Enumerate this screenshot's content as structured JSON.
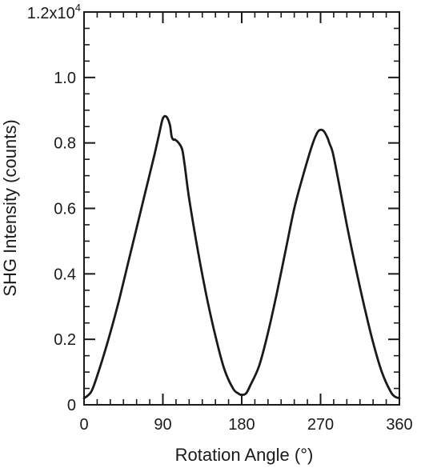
{
  "chart_data": {
    "type": "line",
    "title": "",
    "xlabel": "Rotation Angle (°)",
    "ylabel": "SHG Intensity (counts)",
    "xlim": [
      0,
      360
    ],
    "ylim": [
      0,
      12000
    ],
    "x_ticks": [
      0,
      90,
      180,
      270,
      360
    ],
    "x_tick_labels": [
      "0",
      "90",
      "180",
      "270",
      "360"
    ],
    "y_ticks": [
      0,
      2000,
      4000,
      6000,
      8000,
      10000,
      12000
    ],
    "y_tick_labels": [
      "0",
      "0.2",
      "0.4",
      "0.6",
      "0.8",
      "1.0",
      ""
    ],
    "y_top_label": {
      "base": "1.2x10",
      "exponent": "4"
    },
    "minor_ticks": {
      "x_step": 15,
      "y_step": 500
    },
    "grid": false,
    "legend": "none",
    "line_color": "#1a1a1a",
    "series": [
      {
        "x": [
          0,
          5,
          10,
          20,
          30,
          40,
          50,
          60,
          70,
          80,
          86,
          90,
          94,
          98,
          100,
          102,
          104,
          108,
          112,
          115,
          120,
          130,
          140,
          150,
          160,
          170,
          176,
          180,
          185,
          190,
          200,
          210,
          220,
          230,
          240,
          250,
          260,
          266,
          270,
          274,
          278,
          280,
          284,
          290,
          300,
          310,
          320,
          330,
          340,
          350,
          355,
          360
        ],
        "y": [
          200,
          300,
          500,
          1300,
          2200,
          3200,
          4300,
          5400,
          6500,
          7600,
          8300,
          8750,
          8800,
          8550,
          8200,
          8100,
          8100,
          8000,
          7800,
          7300,
          6300,
          4700,
          3300,
          2100,
          1100,
          500,
          350,
          300,
          350,
          600,
          1200,
          2200,
          3400,
          4700,
          6000,
          7000,
          7900,
          8300,
          8400,
          8350,
          8150,
          8000,
          7700,
          6900,
          5500,
          4200,
          3000,
          1900,
          1000,
          400,
          250,
          200
        ]
      }
    ]
  }
}
